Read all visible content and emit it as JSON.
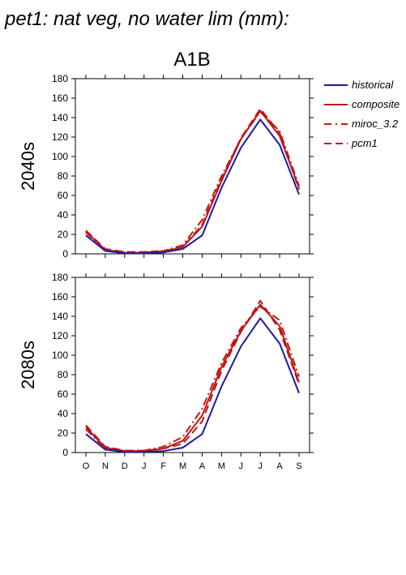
{
  "page_title": "pet1: nat veg, no water lim (mm):",
  "scenario": "A1B",
  "colors": {
    "historical": "#1a1aa8",
    "future": "#c01515"
  },
  "legend": [
    {
      "label": "historical",
      "style": "solid",
      "color": "#1a1aa8"
    },
    {
      "label": "composite",
      "style": "solid",
      "color": "#c01515"
    },
    {
      "label": "miroc_3.2",
      "style": "dashdot",
      "color": "#c01515"
    },
    {
      "label": "pcm1",
      "style": "dash",
      "color": "#c01515"
    }
  ],
  "chart_data": [
    {
      "type": "line",
      "period_label": "2040s",
      "categories": [
        "O",
        "N",
        "D",
        "J",
        "F",
        "M",
        "A",
        "M",
        "J",
        "J",
        "A",
        "S"
      ],
      "ylim": [
        0,
        180
      ],
      "yticks": [
        0,
        20,
        40,
        60,
        80,
        100,
        120,
        140,
        160,
        180
      ],
      "series": [
        {
          "name": "historical",
          "style": "solid",
          "color": "#1a1aa8",
          "values": [
            19,
            3,
            0.5,
            0.5,
            1.5,
            5,
            19,
            68,
            109,
            138,
            112,
            61
          ]
        },
        {
          "name": "composite",
          "style": "solid",
          "color": "#c01515",
          "values": [
            23,
            4,
            1,
            1,
            2,
            7,
            28,
            75,
            118,
            147,
            121,
            68
          ]
        },
        {
          "name": "miroc_3.2",
          "style": "dashdot",
          "color": "#c01515",
          "values": [
            22,
            4,
            1.5,
            1.5,
            3,
            9,
            35,
            80,
            118,
            146,
            126,
            70
          ]
        },
        {
          "name": "pcm1",
          "style": "dash",
          "color": "#c01515",
          "values": [
            24,
            5,
            2,
            2,
            3,
            7,
            30,
            77,
            119,
            149,
            124,
            66
          ]
        }
      ]
    },
    {
      "type": "line",
      "period_label": "2080s",
      "categories": [
        "O",
        "N",
        "D",
        "J",
        "F",
        "M",
        "A",
        "M",
        "J",
        "J",
        "A",
        "S"
      ],
      "ylim": [
        0,
        180
      ],
      "yticks": [
        0,
        20,
        40,
        60,
        80,
        100,
        120,
        140,
        160,
        180
      ],
      "series": [
        {
          "name": "historical",
          "style": "solid",
          "color": "#1a1aa8",
          "values": [
            19,
            3,
            0.5,
            0.5,
            1.5,
            5,
            19,
            68,
            109,
            138,
            112,
            61
          ]
        },
        {
          "name": "composite",
          "style": "solid",
          "color": "#c01515",
          "values": [
            26,
            5,
            1.5,
            1.5,
            4,
            12,
            38,
            88,
            125,
            152,
            130,
            72
          ]
        },
        {
          "name": "miroc_3.2",
          "style": "dashdot",
          "color": "#c01515",
          "values": [
            24,
            4,
            2,
            2,
            6,
            16,
            45,
            92,
            128,
            150,
            136,
            78
          ]
        },
        {
          "name": "pcm1",
          "style": "dash",
          "color": "#c01515",
          "values": [
            28,
            6,
            2,
            2,
            4,
            9,
            32,
            84,
            124,
            156,
            126,
            70
          ]
        }
      ]
    }
  ]
}
